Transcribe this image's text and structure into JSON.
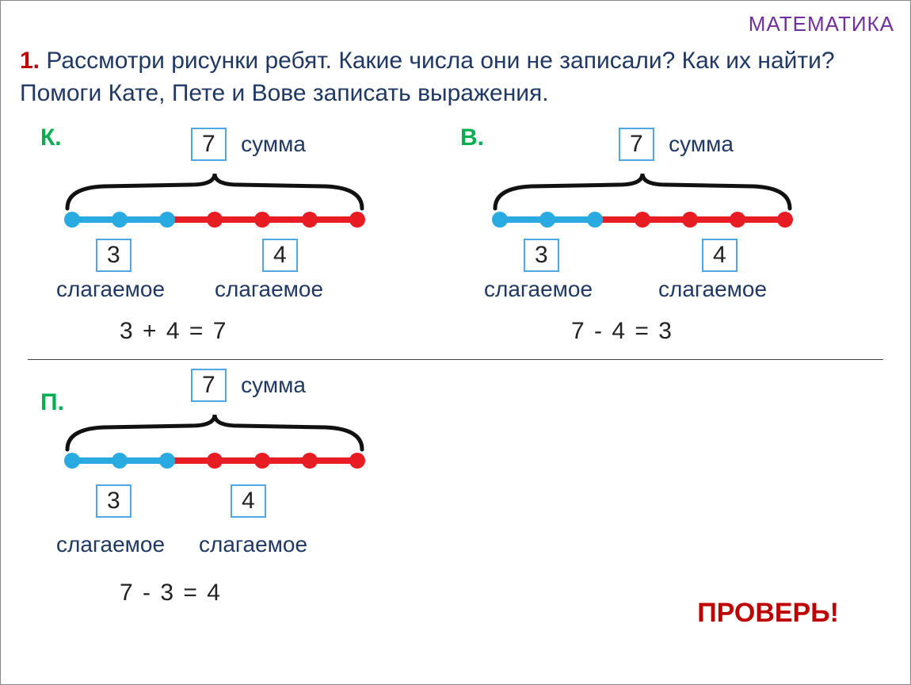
{
  "header": {
    "subject": "МАТЕМАТИКА"
  },
  "task": {
    "num": "1.",
    "text": "Рассмотри рисунки ребят. Какие числа они не записали? Как их найти?  Помоги Кате, Пете и Вове записать выражения."
  },
  "labels": {
    "sum": "сумма",
    "addend": "слагаемое",
    "check": "ПРОВЕРЬ!"
  },
  "colors": {
    "blue_dot": "#29abe2",
    "blue_line": "#29abe2",
    "red_dot": "#e81c23",
    "red_line": "#e81c23",
    "arc": "#111111",
    "subject": "#7030a0",
    "text_dark": "#1f3864",
    "task_num": "#c00000",
    "green_label": "#00b050",
    "box_border": "#4ea6e6"
  },
  "diagrams": {
    "k": {
      "letter": "К.",
      "sum": "7",
      "left": {
        "count": 3,
        "value": "3"
      },
      "right": {
        "count": 4,
        "value": "4"
      },
      "equation": "3  + 4  = 7"
    },
    "v": {
      "letter": "В.",
      "sum": "7",
      "left": {
        "count": 3,
        "value": "3"
      },
      "right": {
        "count": 4,
        "value": "4"
      },
      "equation": "7 - 4  = 3"
    },
    "p": {
      "letter": "П.",
      "sum": "7",
      "left": {
        "count": 3,
        "value": "3"
      },
      "right": {
        "count": 4,
        "value": "4"
      },
      "equation": "7 - 3  = 4"
    }
  },
  "style": {
    "dot_radius": 10,
    "line_width": 8,
    "arc_width": 5,
    "segment_gap": 60
  }
}
